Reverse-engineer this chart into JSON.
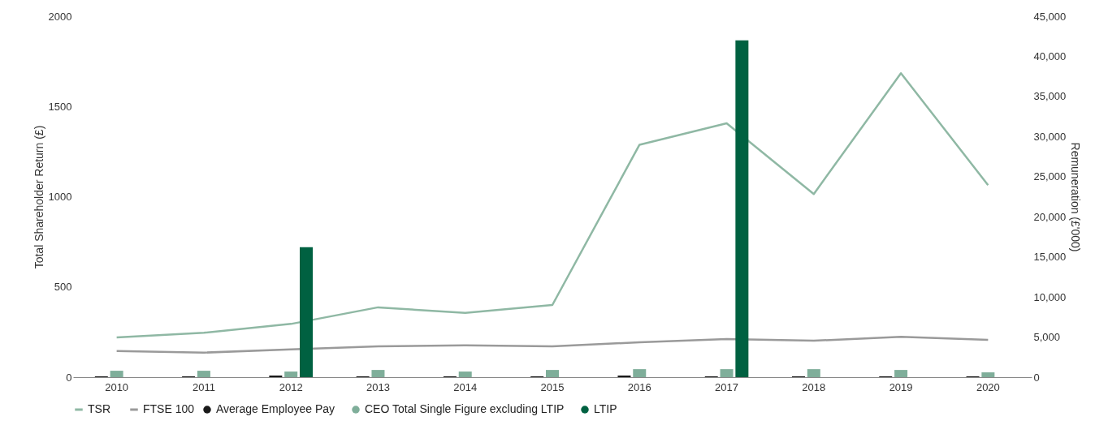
{
  "chart_data": {
    "type": "bar",
    "categories": [
      "2010",
      "2011",
      "2012",
      "2013",
      "2014",
      "2015",
      "2016",
      "2017",
      "2018",
      "2019",
      "2020"
    ],
    "ylabel": "Total Shareholder Return (£)",
    "y2label": "Remuneration (£'000)",
    "ylim": [
      0,
      2000
    ],
    "yticks": [
      0,
      500,
      1000,
      1500,
      2000
    ],
    "y2lim": [
      0,
      45000
    ],
    "y2ticks": [
      0,
      {
        "value": 5000,
        "label": "5,000"
      },
      {
        "value": 10000,
        "label": "10,000"
      },
      {
        "value": 15000,
        "label": "15,000"
      },
      {
        "value": 20000,
        "label": "20,000"
      },
      {
        "value": 25000,
        "label": "25,000"
      },
      {
        "value": 30000,
        "label": "30,000"
      },
      {
        "value": 35000,
        "label": "35,000"
      },
      {
        "value": 40000,
        "label": "40,000"
      },
      {
        "value": 45000,
        "label": "45,000"
      }
    ],
    "legend": "bottom",
    "series": [
      {
        "name": "Average Employee Pay",
        "color": "#1a1a1a",
        "axis": "y2",
        "values": [
          100,
          100,
          200,
          100,
          100,
          100,
          200,
          100,
          100,
          100,
          100
        ]
      },
      {
        "name": "CEO Total Single Figure excluding LTIP",
        "color": "#7fae9a",
        "axis": "y2",
        "values": [
          800,
          800,
          700,
          900,
          700,
          900,
          1000,
          1000,
          1000,
          900,
          600
        ]
      },
      {
        "name": "LTIP",
        "color": "#006141",
        "axis": "y2",
        "values": [
          null,
          null,
          16200,
          null,
          null,
          null,
          null,
          42000,
          null,
          null,
          null
        ]
      },
      {
        "name": "TSR",
        "type": "line",
        "color": "#8fb8a4",
        "values": [
          220,
          246,
          295,
          387,
          356,
          400,
          1288,
          1407,
          1015,
          1684,
          1064
        ]
      },
      {
        "name": "FTSE 100",
        "type": "line",
        "color": "#9a9a9a",
        "values": [
          145,
          136,
          154,
          171,
          176,
          171,
          193,
          211,
          202,
          224,
          207
        ]
      }
    ]
  }
}
